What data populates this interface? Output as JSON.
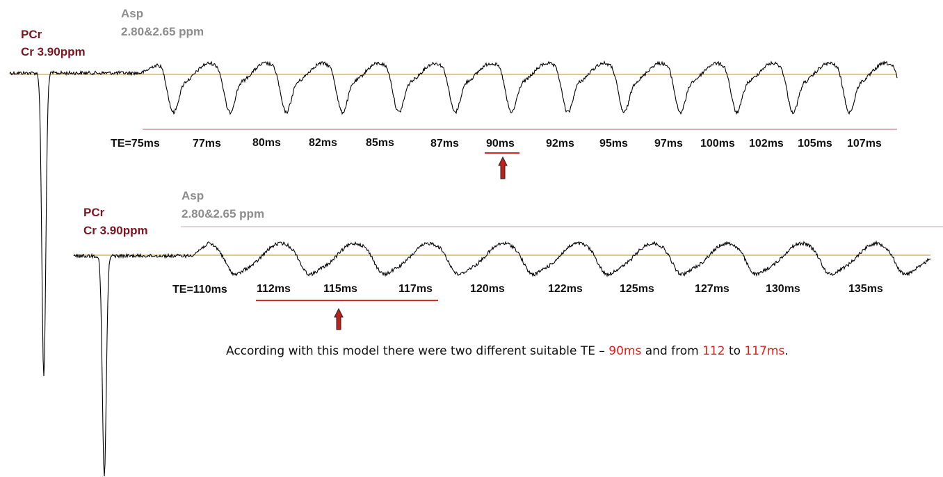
{
  "colors": {
    "trace": "#000000",
    "baseline": "#d8b36a",
    "separator": "#b45a6e",
    "underline": "#d62a2a",
    "arrow_fill": "#c0201c",
    "pcr_text": "#7a1522",
    "asp_text": "#8c8c8c",
    "highlight": "#e0201a"
  },
  "top_panel": {
    "pcr_label": "PCr",
    "cr_label": "Cr 3.90ppm",
    "asp_label": "Asp",
    "asp_ppm": "2.80&2.65 ppm",
    "te_labels": [
      "TE=75ms",
      "77ms",
      "80ms",
      "82ms",
      "85ms",
      "87ms",
      "90ms",
      "92ms",
      "95ms",
      "97ms",
      "100ms",
      "102ms",
      "105ms",
      "107ms"
    ],
    "selected": [
      "90ms"
    ]
  },
  "bottom_panel": {
    "pcr_label": "PCr",
    "cr_label": "Cr 3.90ppm",
    "asp_label": "Asp",
    "asp_ppm": "2.80&2.65 ppm",
    "te_labels": [
      "TE=110ms",
      "112ms",
      "115ms",
      "117ms",
      "120ms",
      "122ms",
      "125ms",
      "127ms",
      "130ms",
      "135ms"
    ],
    "selected": [
      "112ms",
      "115ms",
      "117ms"
    ]
  },
  "conclusion": {
    "part1": "According with this model there were two different suitable TE – ",
    "highlight1": "90ms",
    "part2": " and from ",
    "highlight2": "112",
    "part3": " to ",
    "highlight3": "117ms",
    "part4": "."
  }
}
